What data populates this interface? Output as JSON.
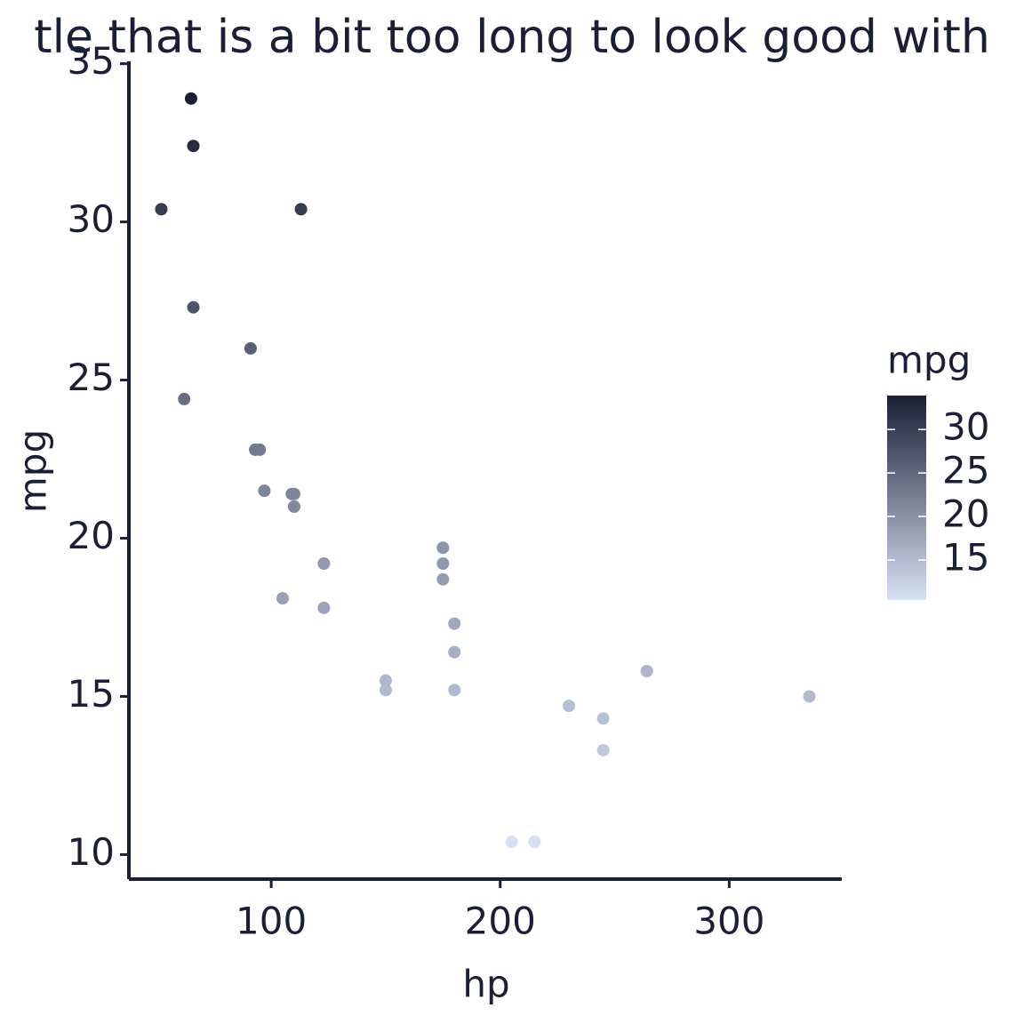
{
  "chart_data": {
    "type": "scatter",
    "title": "tle that is a bit too long to look good with",
    "x_label": "hp",
    "y_label": "mpg",
    "x": [
      110,
      110,
      93,
      110,
      175,
      105,
      245,
      62,
      95,
      123,
      123,
      180,
      180,
      180,
      205,
      215,
      230,
      66,
      52,
      65,
      97,
      150,
      150,
      245,
      175,
      66,
      91,
      113,
      264,
      175,
      335,
      109
    ],
    "y": [
      21,
      21,
      22.8,
      21.4,
      18.7,
      18.1,
      14.3,
      24.4,
      22.8,
      19.2,
      17.8,
      16.4,
      17.3,
      15.2,
      10.4,
      10.4,
      14.7,
      32.4,
      30.4,
      33.9,
      21.5,
      15.5,
      15.2,
      13.3,
      19.2,
      27.3,
      26,
      30.4,
      15.8,
      19.7,
      15,
      21.4
    ],
    "xlim": [
      37.85,
      349.15
    ],
    "xticks": [
      100,
      200,
      300
    ],
    "ylim": [
      9.225,
      35.075
    ],
    "yticks": [
      10,
      15,
      20,
      25,
      30,
      35
    ],
    "grid": false,
    "colorbar": {
      "title": "mpg",
      "lim": [
        10.4,
        33.9
      ],
      "ticks": [
        15,
        20,
        25,
        30
      ],
      "low": "#d6e0f5",
      "high": "#1a1f36"
    }
  }
}
